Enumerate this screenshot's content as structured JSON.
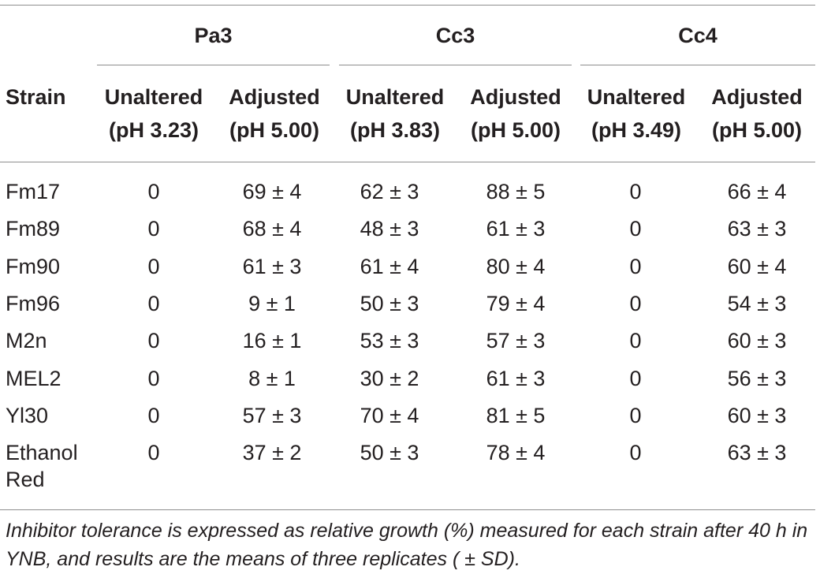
{
  "table": {
    "groups": [
      {
        "label": "Pa3"
      },
      {
        "label": "Cc3"
      },
      {
        "label": "Cc4"
      }
    ],
    "strain_header": "Strain",
    "subheaders": [
      {
        "label": "Unaltered",
        "ph": "(pH 3.23)"
      },
      {
        "label": "Adjusted",
        "ph": "(pH 5.00)"
      },
      {
        "label": "Unaltered",
        "ph": "(pH 3.83)"
      },
      {
        "label": "Adjusted",
        "ph": "(pH 5.00)"
      },
      {
        "label": "Unaltered",
        "ph": "(pH 3.49)"
      },
      {
        "label": "Adjusted",
        "ph": "(pH 5.00)"
      }
    ],
    "rows": [
      {
        "strain": "Fm17",
        "values": [
          "0",
          "69 ± 4",
          "62 ± 3",
          "88 ± 5",
          "0",
          "66 ± 4"
        ]
      },
      {
        "strain": "Fm89",
        "values": [
          "0",
          "68 ± 4",
          "48 ± 3",
          "61 ± 3",
          "0",
          "63 ± 3"
        ]
      },
      {
        "strain": "Fm90",
        "values": [
          "0",
          "61 ± 3",
          "61 ± 4",
          "80 ± 4",
          "0",
          "60 ± 4"
        ]
      },
      {
        "strain": "Fm96",
        "values": [
          "0",
          "9 ± 1",
          "50 ± 3",
          "79 ± 4",
          "0",
          "54 ± 3"
        ]
      },
      {
        "strain": "M2n",
        "values": [
          "0",
          "16 ± 1",
          "53 ± 3",
          "57 ± 3",
          "0",
          "60 ± 3"
        ]
      },
      {
        "strain": "MEL2",
        "values": [
          "0",
          "8 ± 1",
          "30 ± 2",
          "61 ± 3",
          "0",
          "56 ± 3"
        ]
      },
      {
        "strain": "Yl30",
        "values": [
          "0",
          "57 ± 3",
          "70 ± 4",
          "81 ± 5",
          "0",
          "60 ± 3"
        ]
      },
      {
        "strain": "Ethanol Red",
        "values": [
          "0",
          "37 ± 2",
          "50 ± 3",
          "78 ± 4",
          "0",
          "63 ± 3"
        ]
      }
    ],
    "footnote": "Inhibitor tolerance is expressed as relative growth (%) measured for each strain after 40 h in YNB, and results are the means of three replicates ( ± SD)."
  }
}
